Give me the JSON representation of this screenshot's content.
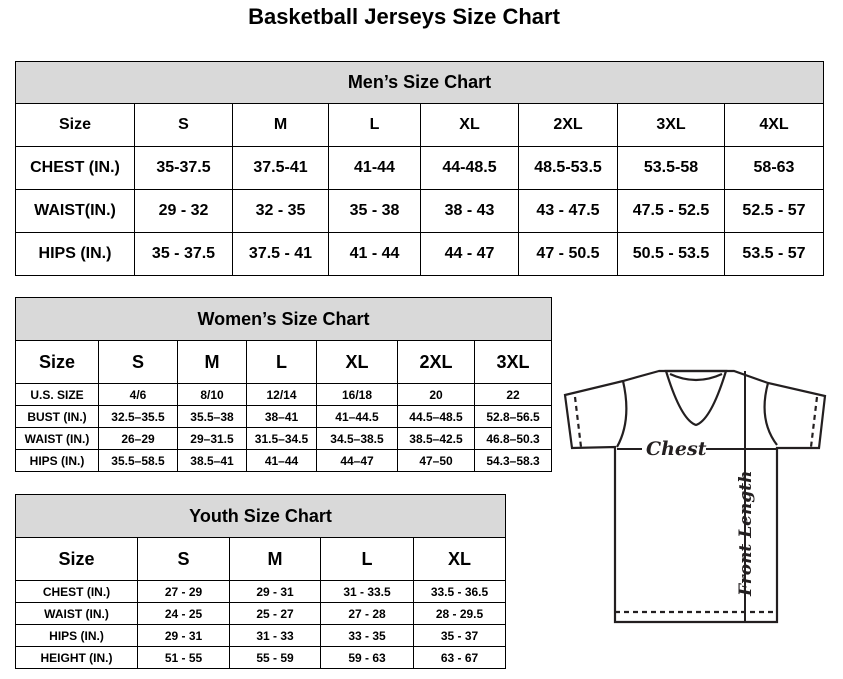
{
  "title": "Basketball Jerseys Size Chart",
  "men": {
    "caption": "Men’s Size Chart",
    "header": [
      "Size",
      "S",
      "M",
      "L",
      "XL",
      "2XL",
      "3XL",
      "4XL"
    ],
    "rows": [
      [
        "CHEST (IN.)",
        "35-37.5",
        "37.5-41",
        "41-44",
        "44-48.5",
        "48.5-53.5",
        "53.5-58",
        "58-63"
      ],
      [
        "WAIST(IN.)",
        "29 - 32",
        "32 - 35",
        "35 - 38",
        "38 - 43",
        "43 - 47.5",
        "47.5 - 52.5",
        "52.5 - 57"
      ],
      [
        "HIPS (IN.)",
        "35 - 37.5",
        "37.5 - 41",
        "41 - 44",
        "44 - 47",
        "47 - 50.5",
        "50.5 - 53.5",
        "53.5 - 57"
      ]
    ]
  },
  "women": {
    "caption": "Women’s Size Chart",
    "header": [
      "Size",
      "S",
      "M",
      "L",
      "XL",
      "2XL",
      "3XL"
    ],
    "rows": [
      [
        "U.S. SIZE",
        "4/6",
        "8/10",
        "12/14",
        "16/18",
        "20",
        "22"
      ],
      [
        "BUST (IN.)",
        "32.5–35.5",
        "35.5–38",
        "38–41",
        "41–44.5",
        "44.5–48.5",
        "52.8–56.5"
      ],
      [
        "WAIST (IN.)",
        "26–29",
        "29–31.5",
        "31.5–34.5",
        "34.5–38.5",
        "38.5–42.5",
        "46.8–50.3"
      ],
      [
        "HIPS (IN.)",
        "35.5–58.5",
        "38.5–41",
        "41–44",
        "44–47",
        "47–50",
        "54.3–58.3"
      ]
    ]
  },
  "youth": {
    "caption": "Youth Size Chart",
    "header": [
      "Size",
      "S",
      "M",
      "L",
      "XL"
    ],
    "rows": [
      [
        "CHEST (IN.)",
        "27 - 29",
        "29 - 31",
        "31 - 33.5",
        "33.5 - 36.5"
      ],
      [
        "WAIST (IN.)",
        "24 - 25",
        "25 - 27",
        "27 - 28",
        "28 - 29.5"
      ],
      [
        "HIPS (IN.)",
        "29 - 31",
        "31 - 33",
        "33 - 35",
        "35 - 37"
      ],
      [
        "HEIGHT (IN.)",
        "51 - 55",
        "55 - 59",
        "59 - 63",
        "63 - 67"
      ]
    ]
  },
  "diagram": {
    "chest_label": "Chest",
    "length_label": "Front Length"
  }
}
